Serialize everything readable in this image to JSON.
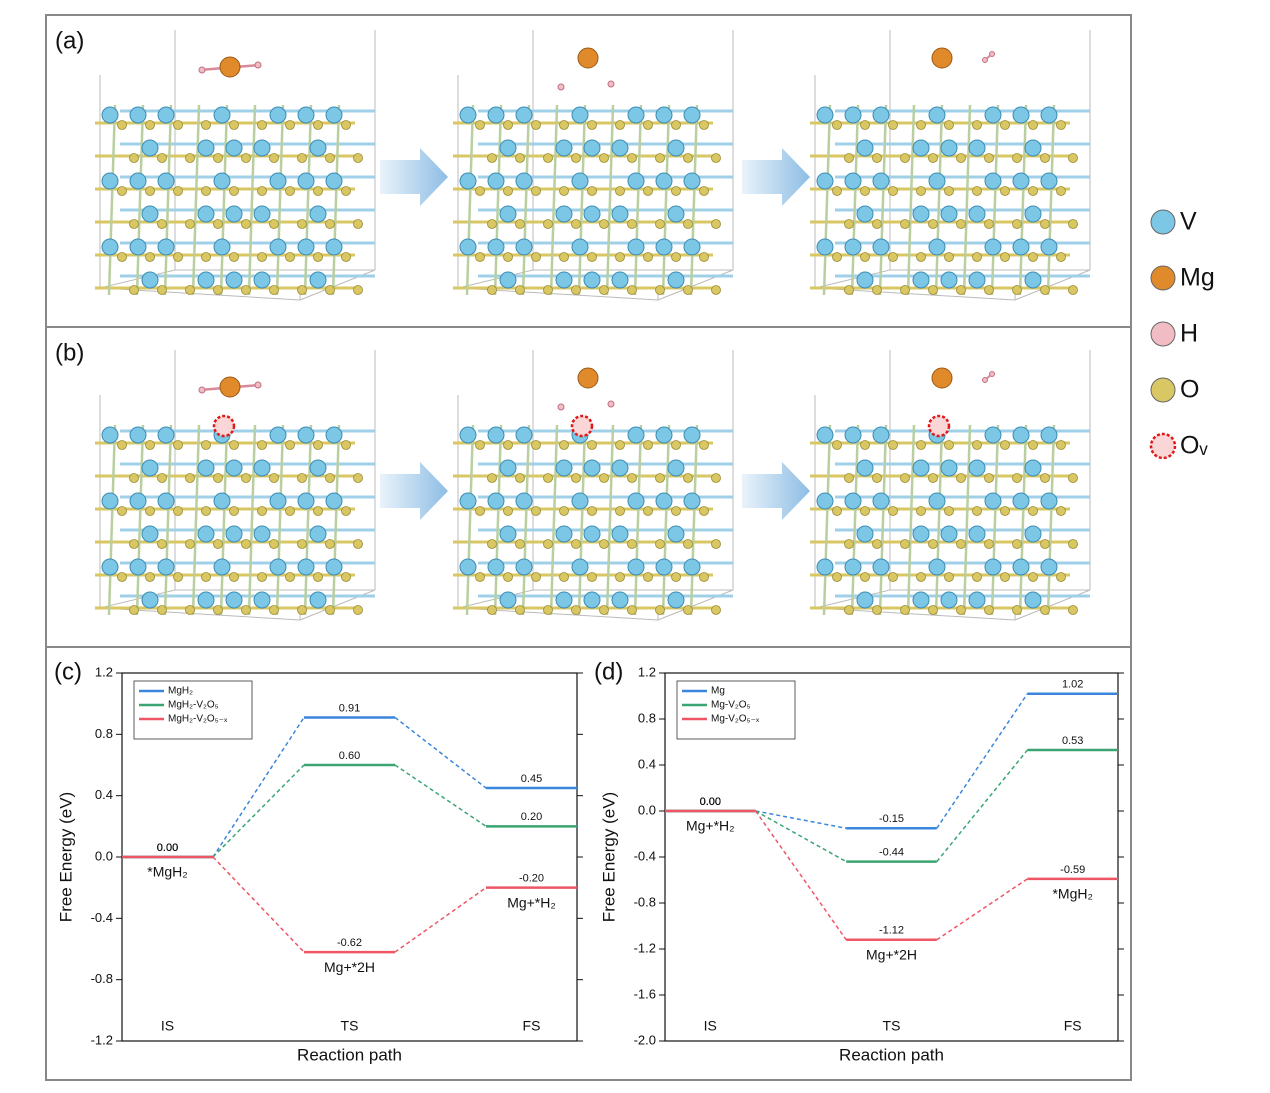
{
  "panels": [
    "(a)",
    "(b)"
  ],
  "atom_legend": [
    {
      "label": "V",
      "color": "#7cc6e6"
    },
    {
      "label": "Mg",
      "color": "#e08a2c"
    },
    {
      "label": "H",
      "color": "#f2bcc4"
    },
    {
      "label": "O",
      "color": "#d9c764"
    },
    {
      "label": "Oᵥ",
      "color": "#fad6d6",
      "dashed": true
    }
  ],
  "chart_data": [
    {
      "type": "step",
      "label": "(c)",
      "y_label": "Free Energy (eV)",
      "x_label": "Reaction path",
      "categories": [
        "IS",
        "TS",
        "FS"
      ],
      "state_labels": [
        "*MgH₂",
        "Mg+*2H",
        "Mg+*H₂"
      ],
      "series": [
        {
          "name": "MgH₂",
          "color": "#3a86dc",
          "values": [
            0.0,
            0.91,
            0.45
          ],
          "value_labels": [
            "0.00",
            "0.91",
            "0.45"
          ]
        },
        {
          "name": "MgH₂-V₂O₅",
          "color": "#3aa572",
          "values": [
            0.0,
            0.6,
            0.2
          ],
          "value_labels": [
            "0.00",
            "0.60",
            "0.20"
          ]
        },
        {
          "name": "MgH₂-V₂O₅₋ₓ",
          "color": "#ee5666",
          "values": [
            0.0,
            -0.62,
            -0.2
          ],
          "value_labels": [
            "0.00",
            "-0.62",
            "-0.20"
          ]
        }
      ],
      "ylim": [
        -1.2,
        1.2
      ],
      "yticks": [
        -1.2,
        -0.8,
        -0.4,
        {
          "value": 0,
          "label": "0.0"
        },
        0.4,
        0.8,
        1.2
      ],
      "legend": "upper left"
    },
    {
      "type": "step",
      "label": "(d)",
      "y_label": "Free Energy (eV)",
      "x_label": "Reaction path",
      "categories": [
        "IS",
        "TS",
        "FS"
      ],
      "state_labels": [
        "Mg+*H₂",
        "Mg+*2H",
        "*MgH₂"
      ],
      "series": [
        {
          "name": "Mg",
          "color": "#3a86dc",
          "values": [
            0.0,
            -0.15,
            1.02
          ],
          "value_labels": [
            "0.00",
            "-0.15",
            "1.02"
          ]
        },
        {
          "name": "Mg-V₂O₅",
          "color": "#3aa572",
          "values": [
            0.0,
            -0.44,
            0.53
          ],
          "value_labels": [
            "0.00",
            "-0.44",
            "0.53"
          ]
        },
        {
          "name": "Mg-V₂O₅₋ₓ",
          "color": "#ee5666",
          "values": [
            0.0,
            -1.12,
            -0.59
          ],
          "value_labels": [
            "0.00",
            "-1.12",
            "-0.59"
          ]
        }
      ],
      "ylim": [
        -2.0,
        1.2
      ],
      "yticks": [
        {
          "value": -2.0,
          "label": "-2.0"
        },
        -1.6,
        -1.2,
        -0.8,
        -0.4,
        {
          "value": 0,
          "label": "0.0"
        },
        0.4,
        0.8,
        1.2
      ],
      "legend": "upper left"
    }
  ]
}
